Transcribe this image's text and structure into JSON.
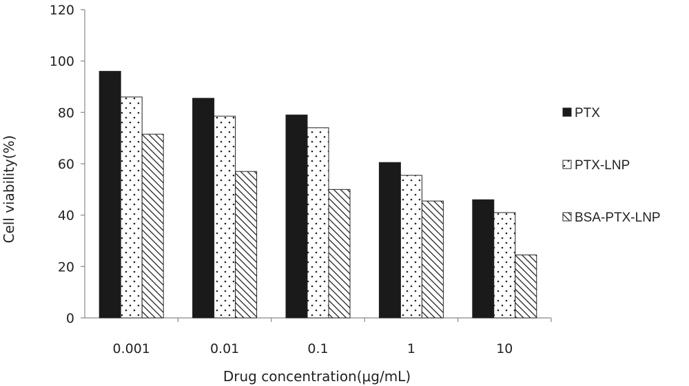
{
  "chart_data": {
    "type": "bar",
    "categories": [
      "0.001",
      "0.01",
      "0.1",
      "1",
      "10"
    ],
    "series": [
      {
        "name": "PTX",
        "values": [
          96,
          85.5,
          79,
          60.5,
          46
        ],
        "pattern": "solid"
      },
      {
        "name": "PTX-LNP",
        "values": [
          86,
          78.5,
          74,
          55.5,
          41
        ],
        "pattern": "dots"
      },
      {
        "name": "BSA-PTX-LNP",
        "values": [
          71.5,
          57,
          50,
          45.5,
          24.5
        ],
        "pattern": "diagonal"
      }
    ],
    "title": "",
    "xlabel": "Drug concentration(μg/mL)",
    "ylabel": "Cell viability(%)",
    "ylim": [
      0,
      120
    ],
    "yticks": [
      0,
      20,
      40,
      60,
      80,
      100,
      120
    ],
    "grid": false,
    "legend_position": "right",
    "colors": {
      "bar_fill": "#1a1a1a",
      "bar_outline": "#222222",
      "axis": "#888888"
    }
  }
}
